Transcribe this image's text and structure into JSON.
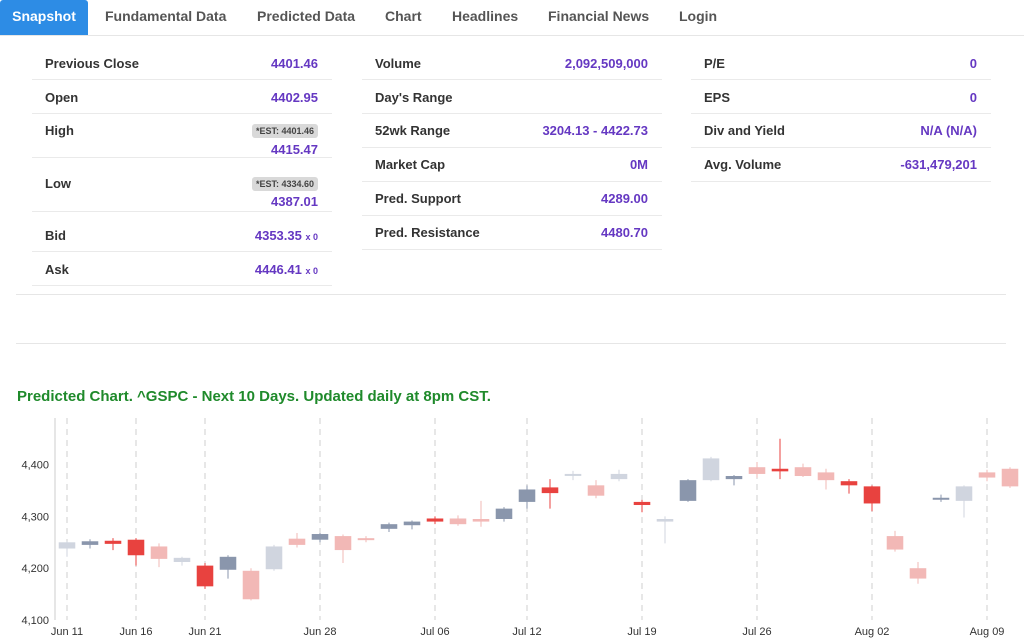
{
  "tabs": [
    "Snapshot",
    "Fundamental Data",
    "Predicted Data",
    "Chart",
    "Headlines",
    "Financial News",
    "Login"
  ],
  "snapshot": {
    "col1": {
      "previous_close": {
        "label": "Previous Close",
        "value": "4401.46"
      },
      "open": {
        "label": "Open",
        "value": "4402.95"
      },
      "high": {
        "label": "High",
        "est": "*EST: 4401.46",
        "value": "4415.47"
      },
      "low": {
        "label": "Low",
        "est": "*EST: 4334.60",
        "value": "4387.01"
      },
      "bid": {
        "label": "Bid",
        "value": "4353.35",
        "size": "x 0"
      },
      "ask": {
        "label": "Ask",
        "value": "4446.41",
        "size": "x 0"
      }
    },
    "col2": {
      "volume": {
        "label": "Volume",
        "value": "2,092,509,000"
      },
      "days_range": {
        "label": "Day's Range",
        "value": ""
      },
      "wk52_range": {
        "label": "52wk Range",
        "value": "3204.13 - 4422.73"
      },
      "market_cap": {
        "label": "Market Cap",
        "value": "0M"
      },
      "pred_support": {
        "label": "Pred. Support",
        "value": "4289.00"
      },
      "pred_resistance": {
        "label": "Pred. Resistance",
        "value": "4480.70"
      }
    },
    "col3": {
      "pe": {
        "label": "P/E",
        "value": "0"
      },
      "eps": {
        "label": "EPS",
        "value": "0"
      },
      "div_yield": {
        "label": "Div and Yield",
        "value": "N/A (N/A)"
      },
      "avg_volume": {
        "label": "Avg. Volume",
        "value": "-631,479,201"
      }
    }
  },
  "predicted_chart_title": "Predicted Chart. ^GSPC - Next 10 Days. Updated daily at 8pm CST.",
  "colors": {
    "tab_active": "#2d8ce5",
    "value_purple": "#6538c2",
    "title_green": "#1f8a2b",
    "up_blue": "#3a4fb8",
    "down_red": "#e8423f",
    "light_red": "#f2b8b6",
    "grey_blue": "#8a96ac",
    "light_grey": "#d0d5df"
  },
  "chart_data": {
    "type": "candlestick",
    "title": "",
    "y_ticks": [
      4100,
      4200,
      4300,
      4400
    ],
    "y_tick_labels": [
      "4,100",
      "4,200",
      "4,300",
      "4,400"
    ],
    "ylim": [
      4100,
      4490
    ],
    "x_ticks": [
      {
        "i": 0,
        "label": "Jun 11"
      },
      {
        "i": 3,
        "label": "Jun 16"
      },
      {
        "i": 6,
        "label": "Jun 21"
      },
      {
        "i": 11,
        "label": "Jun 28"
      },
      {
        "i": 16,
        "label": "Jul 06"
      },
      {
        "i": 20,
        "label": "Jul 12"
      },
      {
        "i": 25,
        "label": "Jul 19"
      },
      {
        "i": 30,
        "label": "Jul 26"
      },
      {
        "i": 35,
        "label": "Aug 02"
      },
      {
        "i": 40,
        "label": "Aug 09"
      }
    ],
    "dashed_lines_at": [
      0,
      3,
      6,
      11,
      16,
      20,
      25,
      30,
      35,
      40
    ],
    "candles": [
      {
        "o": 4238,
        "h": 4252,
        "l": 4222,
        "c": 4250,
        "k": "light_grey"
      },
      {
        "o": 4245,
        "h": 4256,
        "l": 4238,
        "c": 4252,
        "k": "grey_blue"
      },
      {
        "o": 4253,
        "h": 4258,
        "l": 4235,
        "c": 4247,
        "k": "down_red"
      },
      {
        "o": 4255,
        "h": 4258,
        "l": 4205,
        "c": 4225,
        "k": "down_red"
      },
      {
        "o": 4242,
        "h": 4248,
        "l": 4202,
        "c": 4218,
        "k": "light_red"
      },
      {
        "o": 4212,
        "h": 4222,
        "l": 4205,
        "c": 4220,
        "k": "light_grey"
      },
      {
        "o": 4205,
        "h": 4210,
        "l": 4160,
        "c": 4165,
        "k": "down_red"
      },
      {
        "o": 4197,
        "h": 4225,
        "l": 4180,
        "c": 4222,
        "k": "grey_blue"
      },
      {
        "o": 4195,
        "h": 4200,
        "l": 4138,
        "c": 4140,
        "k": "light_red"
      },
      {
        "o": 4198,
        "h": 4245,
        "l": 4195,
        "c": 4242,
        "k": "light_grey"
      },
      {
        "o": 4257,
        "h": 4268,
        "l": 4240,
        "c": 4245,
        "k": "light_red"
      },
      {
        "o": 4255,
        "h": 4268,
        "l": 4250,
        "c": 4266,
        "k": "grey_blue"
      },
      {
        "o": 4262,
        "h": 4265,
        "l": 4210,
        "c": 4235,
        "k": "light_red"
      },
      {
        "o": 4258,
        "h": 4262,
        "l": 4250,
        "c": 4255,
        "k": "light_red"
      },
      {
        "o": 4276,
        "h": 4288,
        "l": 4270,
        "c": 4285,
        "k": "grey_blue"
      },
      {
        "o": 4283,
        "h": 4292,
        "l": 4275,
        "c": 4290,
        "k": "grey_blue"
      },
      {
        "o": 4296,
        "h": 4300,
        "l": 4285,
        "c": 4290,
        "k": "down_red"
      },
      {
        "o": 4296,
        "h": 4302,
        "l": 4282,
        "c": 4285,
        "k": "light_red"
      },
      {
        "o": 4290,
        "h": 4330,
        "l": 4280,
        "c": 4295,
        "k": "light_red"
      },
      {
        "o": 4295,
        "h": 4318,
        "l": 4290,
        "c": 4315,
        "k": "grey_blue"
      },
      {
        "o": 4328,
        "h": 4360,
        "l": 4315,
        "c": 4352,
        "k": "grey_blue"
      },
      {
        "o": 4356,
        "h": 4372,
        "l": 4315,
        "c": 4345,
        "k": "down_red"
      },
      {
        "o": 4380,
        "h": 4388,
        "l": 4370,
        "c": 4382,
        "k": "light_grey"
      },
      {
        "o": 4360,
        "h": 4370,
        "l": 4335,
        "c": 4340,
        "k": "light_red"
      },
      {
        "o": 4382,
        "h": 4390,
        "l": 4368,
        "c": 4372,
        "k": "light_grey"
      },
      {
        "o": 4328,
        "h": 4332,
        "l": 4308,
        "c": 4322,
        "k": "down_red"
      },
      {
        "o": 4295,
        "h": 4300,
        "l": 4248,
        "c": 4290,
        "k": "light_grey"
      },
      {
        "o": 4330,
        "h": 4372,
        "l": 4328,
        "c": 4370,
        "k": "grey_blue"
      },
      {
        "o": 4370,
        "h": 4415,
        "l": 4368,
        "c": 4412,
        "k": "light_grey"
      },
      {
        "o": 4372,
        "h": 4380,
        "l": 4360,
        "c": 4378,
        "k": "grey_blue"
      },
      {
        "o": 4395,
        "h": 4405,
        "l": 4375,
        "c": 4382,
        "k": "light_red"
      },
      {
        "o": 4392,
        "h": 4450,
        "l": 4372,
        "c": 4387,
        "k": "down_red"
      },
      {
        "o": 4395,
        "h": 4402,
        "l": 4376,
        "c": 4378,
        "k": "light_red"
      },
      {
        "o": 4385,
        "h": 4392,
        "l": 4352,
        "c": 4370,
        "k": "light_red"
      },
      {
        "o": 4360,
        "h": 4372,
        "l": 4344,
        "c": 4368,
        "k": "down_red"
      },
      {
        "o": 4325,
        "h": 4360,
        "l": 4310,
        "c": 4358,
        "k": "down_red"
      },
      {
        "o": 4262,
        "h": 4272,
        "l": 4232,
        "c": 4236,
        "k": "light_red"
      },
      {
        "o": 4200,
        "h": 4212,
        "l": 4170,
        "c": 4180,
        "k": "light_red"
      },
      {
        "o": 4335,
        "h": 4342,
        "l": 4328,
        "c": 4336,
        "k": "grey_blue"
      },
      {
        "o": 4330,
        "h": 4360,
        "l": 4298,
        "c": 4358,
        "k": "light_grey"
      },
      {
        "o": 4375,
        "h": 4390,
        "l": 4368,
        "c": 4385,
        "k": "light_red"
      },
      {
        "o": 4392,
        "h": 4395,
        "l": 4355,
        "c": 4358,
        "k": "light_red"
      }
    ]
  }
}
